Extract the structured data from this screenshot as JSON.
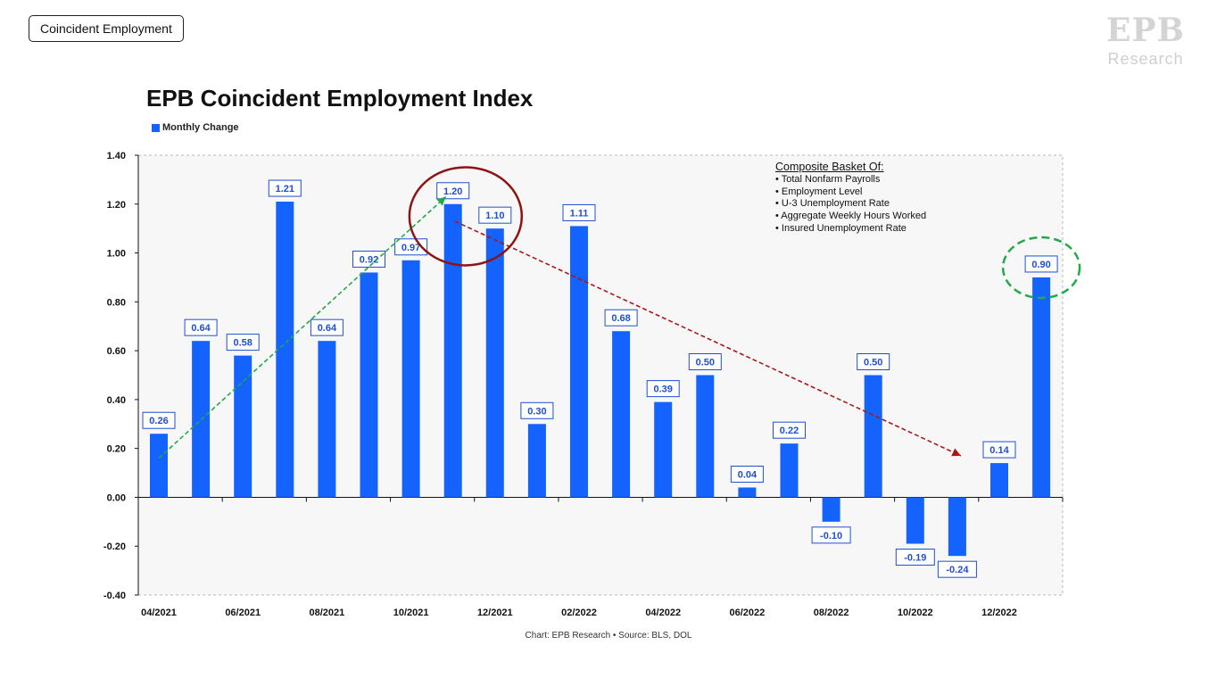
{
  "tag_label": "Coincident Employment",
  "logo": {
    "mark": "EPB",
    "word": "Research"
  },
  "chart_data": {
    "type": "bar",
    "title": "EPB Coincident Employment Index",
    "series": [
      {
        "name": "Monthly Change",
        "color": "#1463ff",
        "values": [
          0.26,
          0.64,
          0.58,
          1.21,
          0.64,
          0.92,
          0.97,
          1.2,
          1.1,
          0.3,
          1.11,
          0.68,
          0.39,
          0.5,
          0.04,
          0.22,
          -0.1,
          0.5,
          -0.19,
          -0.24,
          0.14,
          0.9
        ]
      }
    ],
    "data_labels": [
      "0.26",
      "0.64",
      "0.58",
      "1.21",
      "0.64",
      "0.92",
      "0.97",
      "1.20",
      "1.10",
      "0.30",
      "1.11",
      "0.68",
      "0.39",
      "0.50",
      "0.04",
      "0.22",
      "-0.10",
      "0.50",
      "-0.19",
      "-0.24",
      "0.14",
      "0.90"
    ],
    "x_tick_labels": [
      "04/2021",
      "06/2021",
      "08/2021",
      "10/2021",
      "12/2021",
      "02/2022",
      "04/2022",
      "06/2022",
      "08/2022",
      "10/2022",
      "12/2022"
    ],
    "ylim": [
      -0.4,
      1.4
    ],
    "y_ticks": [
      1.4,
      1.2,
      1.0,
      0.8,
      0.6,
      0.4,
      0.2,
      0.0,
      -0.2,
      -0.4
    ],
    "y_tick_labels": [
      "1.40",
      "1.20",
      "1.00",
      "0.80",
      "0.60",
      "0.40",
      "0.20",
      "0.00",
      "-0.20",
      "-0.40"
    ],
    "xlabel": "",
    "ylabel": "",
    "legend_position": "top-left",
    "grid": false,
    "annotations": {
      "uptrend_arrow": {
        "from": [
          0,
          0.16
        ],
        "to": [
          7,
          1.23
        ],
        "color": "#22a94a",
        "style": "dashed"
      },
      "downtrend_arrow": {
        "from": [
          7,
          1.13
        ],
        "to": [
          19,
          0.17
        ],
        "color": "#a81717",
        "style": "dashed"
      },
      "peak_circle": {
        "center": [
          7.3,
          1.15
        ],
        "color": "#8b1414"
      },
      "latest_circle": {
        "center": [
          21,
          0.94
        ],
        "color": "#22a94a",
        "style": "dashed"
      }
    },
    "note": {
      "heading": "Composite Basket Of:",
      "items": [
        "• Total Nonfarm Payrolls",
        "• Employment Level",
        "• U-3 Unemployment Rate",
        "• Aggregate Weekly Hours Worked",
        "• Insured Unemployment Rate"
      ]
    },
    "source": "Chart: EPB Research  •  Source: BLS, DOL"
  }
}
